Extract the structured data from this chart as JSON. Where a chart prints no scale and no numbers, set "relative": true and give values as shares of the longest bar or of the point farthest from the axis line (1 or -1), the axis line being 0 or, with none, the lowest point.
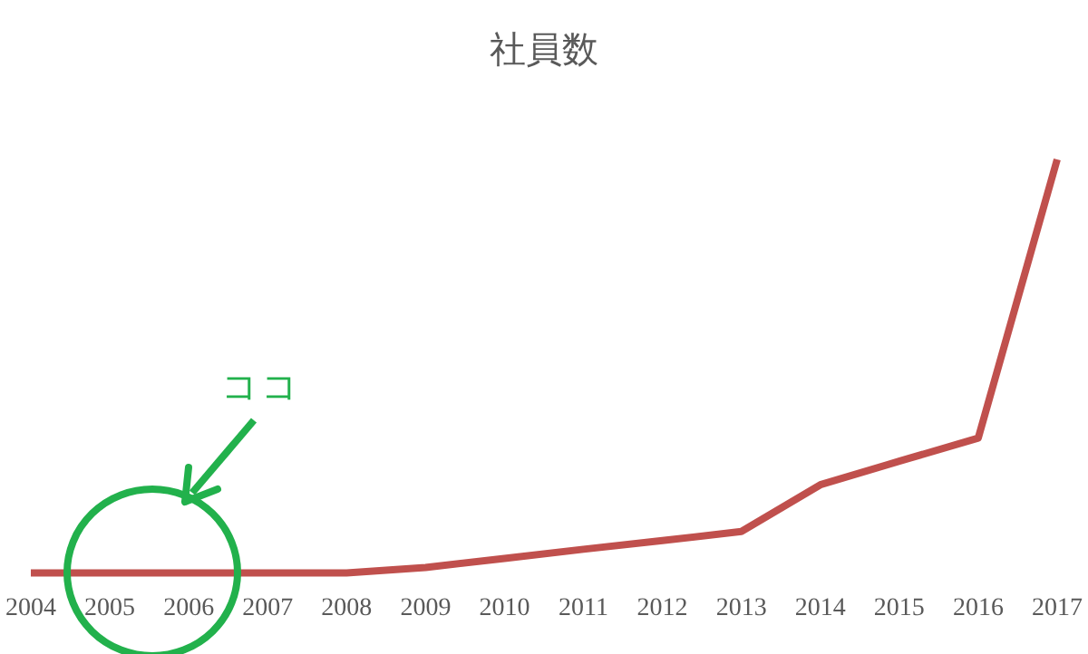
{
  "chart_data": {
    "type": "line",
    "title": "社員数",
    "relative": true,
    "categories": [
      "2004",
      "2005",
      "2006",
      "2007",
      "2008",
      "2009",
      "2010",
      "2011",
      "2012",
      "2013",
      "2014",
      "2015",
      "2016",
      "2017"
    ],
    "values": [
      0,
      0,
      0,
      0,
      0,
      0.013,
      0.035,
      0.057,
      0.078,
      0.1,
      0.213,
      0.27,
      0.326,
      1
    ],
    "color": "#c0504d",
    "annotations": [
      "ココ"
    ]
  }
}
